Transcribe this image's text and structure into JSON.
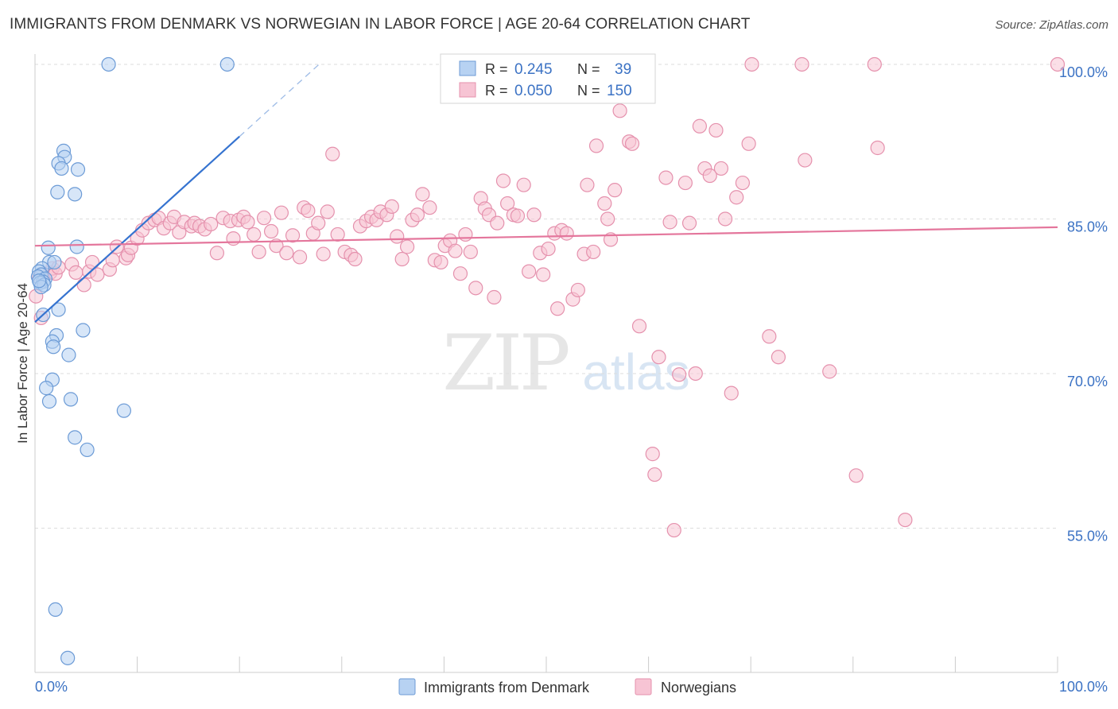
{
  "title": "IMMIGRANTS FROM DENMARK VS NORWEGIAN IN LABOR FORCE | AGE 20-64 CORRELATION CHART",
  "source": "Source: ZipAtlas.com",
  "watermark": {
    "zip": "ZIP",
    "atlas": "atlas"
  },
  "colors": {
    "blue_fill": "#b7d2f2",
    "blue_stroke": "#6c9bd6",
    "blue_line": "#3573d0",
    "pink_fill": "#f7c4d4",
    "pink_stroke": "#e591ad",
    "pink_line": "#e4769c",
    "axis_text": "#3b72c4",
    "grid": "#dddddd"
  },
  "legend": {
    "rows": [
      {
        "r_label": "R =",
        "r_value": "0.245",
        "n_label": "N =",
        "n_value": "39"
      },
      {
        "r_label": "R =",
        "r_value": "0.050",
        "n_label": "N =",
        "n_value": "150"
      }
    ]
  },
  "bottom_legend": [
    "Immigrants from Denmark",
    "Norwegians"
  ],
  "chart_data": {
    "type": "scatter",
    "title": "IMMIGRANTS FROM DENMARK VS NORWEGIAN IN LABOR FORCE | AGE 20-64 CORRELATION CHART",
    "xlabel": "",
    "ylabel": "In Labor Force | Age 20-64",
    "xlim": [
      0,
      100
    ],
    "ylim": [
      41,
      101
    ],
    "x_tick_labels": [
      "0.0%",
      "100.0%"
    ],
    "y_ticks": [
      55,
      70,
      85,
      100
    ],
    "y_tick_labels": [
      "55.0%",
      "70.0%",
      "85.0%",
      "100.0%"
    ],
    "series": [
      {
        "name": "Immigrants from Denmark",
        "R": 0.245,
        "N": 39,
        "trend": {
          "x0": 0,
          "y0": 75.0,
          "x1": 20,
          "y1": 93.0,
          "dash_to_x": 28,
          "dash_to_y": 100.2
        },
        "points": [
          [
            7.2,
            100
          ],
          [
            18.8,
            100
          ],
          [
            2.8,
            91.6
          ],
          [
            2.9,
            91.0
          ],
          [
            2.3,
            90.4
          ],
          [
            2.6,
            89.9
          ],
          [
            4.2,
            89.8
          ],
          [
            2.2,
            87.6
          ],
          [
            3.9,
            87.4
          ],
          [
            1.3,
            82.2
          ],
          [
            4.1,
            82.3
          ],
          [
            1.4,
            80.8
          ],
          [
            1.9,
            80.8
          ],
          [
            0.7,
            80.2
          ],
          [
            0.4,
            79.9
          ],
          [
            0.6,
            79.6
          ],
          [
            0.3,
            79.4
          ],
          [
            1.0,
            79.2
          ],
          [
            0.8,
            78.9
          ],
          [
            0.5,
            78.8
          ],
          [
            0.9,
            78.6
          ],
          [
            0.6,
            78.4
          ],
          [
            0.8,
            75.7
          ],
          [
            2.3,
            76.2
          ],
          [
            4.7,
            74.2
          ],
          [
            2.1,
            73.7
          ],
          [
            1.7,
            73.1
          ],
          [
            1.8,
            72.6
          ],
          [
            3.3,
            71.8
          ],
          [
            1.7,
            69.4
          ],
          [
            1.1,
            68.6
          ],
          [
            1.4,
            67.3
          ],
          [
            3.5,
            67.5
          ],
          [
            8.7,
            66.4
          ],
          [
            3.9,
            63.8
          ],
          [
            5.1,
            62.6
          ],
          [
            2.0,
            47.1
          ],
          [
            3.2,
            42.4
          ],
          [
            0.4,
            79.0
          ]
        ]
      },
      {
        "name": "Norwegians",
        "R": 0.05,
        "N": 150,
        "trend": {
          "x0": 0,
          "y0": 82.4,
          "x1": 100,
          "y1": 84.2
        },
        "points": [
          [
            0.1,
            77.5
          ],
          [
            0.6,
            75.4
          ],
          [
            0.4,
            79.3
          ],
          [
            0.7,
            79.6
          ],
          [
            1.5,
            79.8
          ],
          [
            1.7,
            80.2
          ],
          [
            2.0,
            79.7
          ],
          [
            2.3,
            80.3
          ],
          [
            3.6,
            80.6
          ],
          [
            4.0,
            79.8
          ],
          [
            4.8,
            78.6
          ],
          [
            5.3,
            79.9
          ],
          [
            5.6,
            80.8
          ],
          [
            6.1,
            79.6
          ],
          [
            7.3,
            80.1
          ],
          [
            7.6,
            81.0
          ],
          [
            8.0,
            82.3
          ],
          [
            8.9,
            81.2
          ],
          [
            9.1,
            81.5
          ],
          [
            9.4,
            82.2
          ],
          [
            10.0,
            83.1
          ],
          [
            10.5,
            83.9
          ],
          [
            11.1,
            84.6
          ],
          [
            11.7,
            84.9
          ],
          [
            12.1,
            85.1
          ],
          [
            12.6,
            84.1
          ],
          [
            13.2,
            84.6
          ],
          [
            13.6,
            85.2
          ],
          [
            14.1,
            83.7
          ],
          [
            14.6,
            84.7
          ],
          [
            15.3,
            84.3
          ],
          [
            15.6,
            84.6
          ],
          [
            16.1,
            84.3
          ],
          [
            16.6,
            84.0
          ],
          [
            17.2,
            84.5
          ],
          [
            17.8,
            81.7
          ],
          [
            18.4,
            85.1
          ],
          [
            19.1,
            84.8
          ],
          [
            19.4,
            83.1
          ],
          [
            19.9,
            84.9
          ],
          [
            20.4,
            85.2
          ],
          [
            20.8,
            84.7
          ],
          [
            21.4,
            83.5
          ],
          [
            21.9,
            81.8
          ],
          [
            22.4,
            85.1
          ],
          [
            23.1,
            83.8
          ],
          [
            23.6,
            82.4
          ],
          [
            24.1,
            85.6
          ],
          [
            24.6,
            81.7
          ],
          [
            25.2,
            83.4
          ],
          [
            25.9,
            81.3
          ],
          [
            26.3,
            86.1
          ],
          [
            26.7,
            85.8
          ],
          [
            27.2,
            83.6
          ],
          [
            27.7,
            84.6
          ],
          [
            28.2,
            81.6
          ],
          [
            28.6,
            85.7
          ],
          [
            29.1,
            91.3
          ],
          [
            29.6,
            83.5
          ],
          [
            30.3,
            81.8
          ],
          [
            30.9,
            81.5
          ],
          [
            31.3,
            81.1
          ],
          [
            31.8,
            84.3
          ],
          [
            32.4,
            84.8
          ],
          [
            32.9,
            85.2
          ],
          [
            33.4,
            84.9
          ],
          [
            33.8,
            85.7
          ],
          [
            34.4,
            85.4
          ],
          [
            34.9,
            86.2
          ],
          [
            35.4,
            83.3
          ],
          [
            35.9,
            81.1
          ],
          [
            36.4,
            82.3
          ],
          [
            36.9,
            84.9
          ],
          [
            37.4,
            85.4
          ],
          [
            37.9,
            87.4
          ],
          [
            38.6,
            86.1
          ],
          [
            39.1,
            81.0
          ],
          [
            39.7,
            80.8
          ],
          [
            40.1,
            82.4
          ],
          [
            40.6,
            82.9
          ],
          [
            41.1,
            81.9
          ],
          [
            41.6,
            79.7
          ],
          [
            42.1,
            83.5
          ],
          [
            42.6,
            81.8
          ],
          [
            43.1,
            78.3
          ],
          [
            43.6,
            87.0
          ],
          [
            44.0,
            86.0
          ],
          [
            44.4,
            85.4
          ],
          [
            44.9,
            77.4
          ],
          [
            45.2,
            84.6
          ],
          [
            45.8,
            88.7
          ],
          [
            46.2,
            86.5
          ],
          [
            46.8,
            85.4
          ],
          [
            47.2,
            85.3
          ],
          [
            47.8,
            88.3
          ],
          [
            48.3,
            79.9
          ],
          [
            48.8,
            85.4
          ],
          [
            49.4,
            81.7
          ],
          [
            49.7,
            79.6
          ],
          [
            50.2,
            82.1
          ],
          [
            50.8,
            83.6
          ],
          [
            51.1,
            76.3
          ],
          [
            51.5,
            83.9
          ],
          [
            52.0,
            83.6
          ],
          [
            52.6,
            77.2
          ],
          [
            53.1,
            78.1
          ],
          [
            53.7,
            81.6
          ],
          [
            54.0,
            88.3
          ],
          [
            54.6,
            81.8
          ],
          [
            54.9,
            92.1
          ],
          [
            55.7,
            86.5
          ],
          [
            56.0,
            85.0
          ],
          [
            56.3,
            83.0
          ],
          [
            56.7,
            87.8
          ],
          [
            57.2,
            95.5
          ],
          [
            58.1,
            92.5
          ],
          [
            58.4,
            92.3
          ],
          [
            59.1,
            74.6
          ],
          [
            60.4,
            62.2
          ],
          [
            60.6,
            60.2
          ],
          [
            61.0,
            71.6
          ],
          [
            61.7,
            89.0
          ],
          [
            62.1,
            84.7
          ],
          [
            62.5,
            54.8
          ],
          [
            63.0,
            69.9
          ],
          [
            63.6,
            88.5
          ],
          [
            64.0,
            84.6
          ],
          [
            64.6,
            70.0
          ],
          [
            65.0,
            94.0
          ],
          [
            65.5,
            89.9
          ],
          [
            66.0,
            89.2
          ],
          [
            66.6,
            93.6
          ],
          [
            67.1,
            89.9
          ],
          [
            67.5,
            85.0
          ],
          [
            68.1,
            68.1
          ],
          [
            68.6,
            87.1
          ],
          [
            69.2,
            88.5
          ],
          [
            69.8,
            92.3
          ],
          [
            70.1,
            100
          ],
          [
            71.8,
            73.6
          ],
          [
            72.7,
            71.6
          ],
          [
            75.0,
            100
          ],
          [
            75.3,
            90.7
          ],
          [
            77.7,
            70.2
          ],
          [
            80.3,
            60.1
          ],
          [
            82.1,
            100
          ],
          [
            82.4,
            91.9
          ],
          [
            85.1,
            55.8
          ],
          [
            100,
            100
          ]
        ]
      }
    ]
  }
}
